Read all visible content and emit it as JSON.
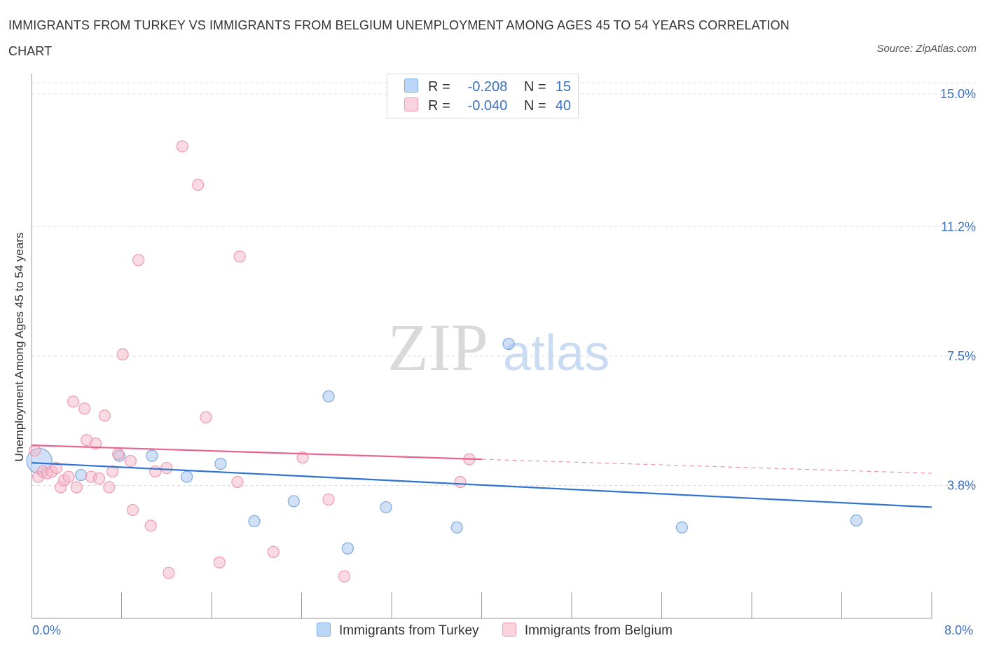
{
  "chart_data": {
    "type": "scatter",
    "title": "IMMIGRANTS FROM TURKEY VS IMMIGRANTS FROM BELGIUM UNEMPLOYMENT AMONG AGES 45 TO 54 YEARS CORRELATION CHART",
    "source": "Source: ZipAtlas.com",
    "xlabel": "",
    "ylabel": "Unemployment Among Ages 45 to 54 years",
    "xlim": [
      0,
      8
    ],
    "ylim": [
      0,
      15
    ],
    "x_tick_labels": {
      "left": "0.0%",
      "right": "8.0%"
    },
    "y_ticks": [
      {
        "value": 3.8,
        "label": "3.8%"
      },
      {
        "value": 7.5,
        "label": "7.5%"
      },
      {
        "value": 11.2,
        "label": "11.2%"
      },
      {
        "value": 15.0,
        "label": "15.0%"
      }
    ],
    "grid": true,
    "watermark": "ZIPatlas",
    "legend": {
      "rows": [
        {
          "r_label": "R =",
          "r_value": "-0.208",
          "n_label": "N =",
          "n_value": "15"
        },
        {
          "r_label": "R =",
          "r_value": "-0.040",
          "n_label": "N =",
          "n_value": "40"
        }
      ]
    },
    "series": [
      {
        "name": "Immigrants from Turkey",
        "color": "#a9c8f0",
        "line_color": "#2f73d0",
        "trend": {
          "x0": 0.0,
          "y0": 4.45,
          "x1": 8.0,
          "y1": 3.18,
          "dash_from": null
        },
        "points": [
          {
            "x": 0.07,
            "y": 4.5,
            "big": true
          },
          {
            "x": 0.44,
            "y": 4.1
          },
          {
            "x": 0.78,
            "y": 4.65
          },
          {
            "x": 1.07,
            "y": 4.65
          },
          {
            "x": 1.38,
            "y": 4.05
          },
          {
            "x": 1.68,
            "y": 4.42
          },
          {
            "x": 1.98,
            "y": 2.78
          },
          {
            "x": 2.33,
            "y": 3.35
          },
          {
            "x": 2.64,
            "y": 6.35
          },
          {
            "x": 2.81,
            "y": 2.0
          },
          {
            "x": 3.15,
            "y": 3.18
          },
          {
            "x": 3.78,
            "y": 2.6
          },
          {
            "x": 4.24,
            "y": 7.85
          },
          {
            "x": 5.78,
            "y": 2.6
          },
          {
            "x": 7.33,
            "y": 2.8
          }
        ]
      },
      {
        "name": "Immigrants from Belgium",
        "color": "#f5b8c8",
        "line_color": "#e8648e",
        "trend": {
          "x0": 0.0,
          "y0": 4.95,
          "x1": 8.0,
          "y1": 4.15,
          "dash_from": 4.0
        },
        "points": [
          {
            "x": 0.03,
            "y": 4.8
          },
          {
            "x": 0.06,
            "y": 4.05
          },
          {
            "x": 0.1,
            "y": 4.2
          },
          {
            "x": 0.14,
            "y": 4.15
          },
          {
            "x": 0.18,
            "y": 4.2
          },
          {
            "x": 0.22,
            "y": 4.3
          },
          {
            "x": 0.26,
            "y": 3.75
          },
          {
            "x": 0.29,
            "y": 3.95
          },
          {
            "x": 0.33,
            "y": 4.05
          },
          {
            "x": 0.37,
            "y": 6.2
          },
          {
            "x": 0.4,
            "y": 3.75
          },
          {
            "x": 0.47,
            "y": 6.0
          },
          {
            "x": 0.49,
            "y": 5.1
          },
          {
            "x": 0.53,
            "y": 4.05
          },
          {
            "x": 0.57,
            "y": 5.0
          },
          {
            "x": 0.6,
            "y": 4.0
          },
          {
            "x": 0.65,
            "y": 5.8
          },
          {
            "x": 0.69,
            "y": 3.75
          },
          {
            "x": 0.72,
            "y": 4.2
          },
          {
            "x": 0.77,
            "y": 4.7
          },
          {
            "x": 0.81,
            "y": 7.55
          },
          {
            "x": 0.88,
            "y": 4.5
          },
          {
            "x": 0.9,
            "y": 3.1
          },
          {
            "x": 0.95,
            "y": 10.25
          },
          {
            "x": 1.06,
            "y": 2.65
          },
          {
            "x": 1.1,
            "y": 4.2
          },
          {
            "x": 1.2,
            "y": 4.3
          },
          {
            "x": 1.22,
            "y": 1.3
          },
          {
            "x": 1.34,
            "y": 13.5
          },
          {
            "x": 1.48,
            "y": 12.4
          },
          {
            "x": 1.55,
            "y": 5.75
          },
          {
            "x": 1.67,
            "y": 1.6
          },
          {
            "x": 1.83,
            "y": 3.9
          },
          {
            "x": 1.85,
            "y": 10.35
          },
          {
            "x": 2.15,
            "y": 1.9
          },
          {
            "x": 2.41,
            "y": 4.6
          },
          {
            "x": 2.64,
            "y": 3.4
          },
          {
            "x": 2.78,
            "y": 1.2
          },
          {
            "x": 3.81,
            "y": 3.9
          },
          {
            "x": 3.89,
            "y": 4.55
          }
        ]
      }
    ]
  }
}
